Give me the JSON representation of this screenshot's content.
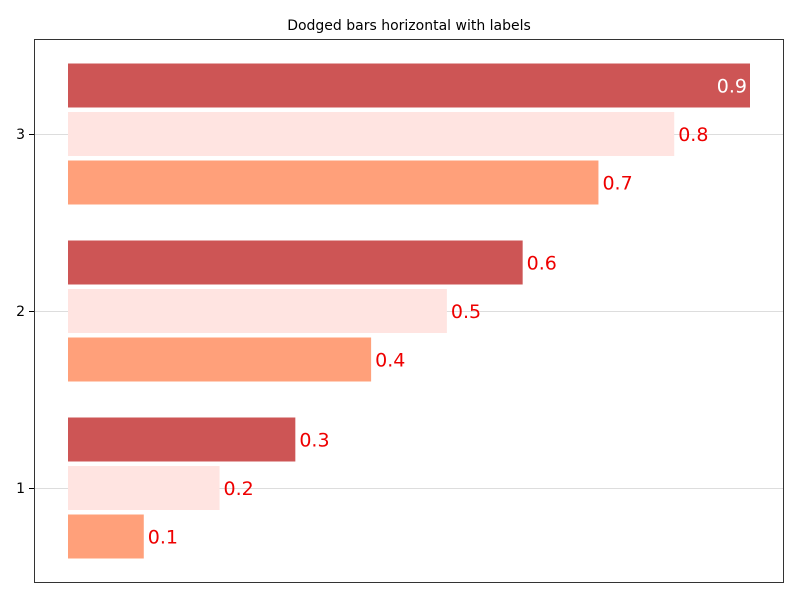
{
  "chart_data": {
    "type": "bar",
    "orientation": "horizontal",
    "title": "Dodged bars horizontal with labels",
    "xlabel": "",
    "ylabel": "",
    "categories": [
      "1",
      "2",
      "3"
    ],
    "series": [
      {
        "values": [
          0.1,
          0.4,
          0.7
        ],
        "color": "#ffa07a"
      },
      {
        "values": [
          0.2,
          0.5,
          0.8
        ],
        "color": "#ffe4e1"
      },
      {
        "values": [
          0.3,
          0.6,
          0.9
        ],
        "color": "#cd5555"
      }
    ],
    "data_labels": [
      [
        "0.1",
        "0.4",
        "0.7"
      ],
      [
        "0.2",
        "0.5",
        "0.8"
      ],
      [
        "0.3",
        "0.6",
        "0.9"
      ]
    ],
    "xlim": [
      0,
      0.9
    ],
    "x_axis_visible": false,
    "grid": "horizontal",
    "label_color": "#ee0000",
    "label_color_inside": "#ffffff"
  }
}
